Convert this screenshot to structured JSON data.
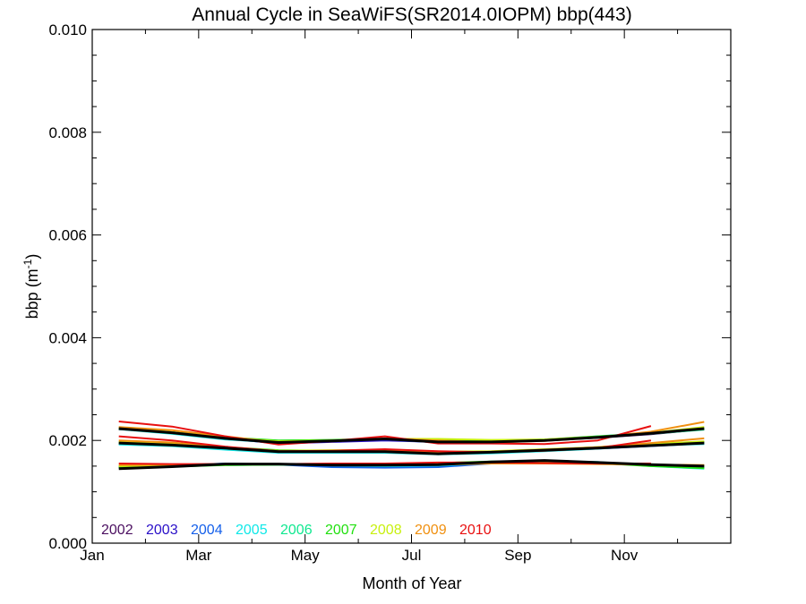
{
  "chart_data": {
    "type": "line",
    "title": "Annual Cycle in SeaWiFS(SR2014.0IOPM) bbp(443)",
    "xlabel": "Month of Year",
    "ylabel_main": "bbp (m",
    "ylabel_sup": "-1",
    "ylabel_close": ")",
    "xlim": [
      0,
      12
    ],
    "ylim": [
      0.0,
      0.01
    ],
    "x_ticks": [
      {
        "value": 0,
        "label": "Jan"
      },
      {
        "value": 2,
        "label": "Mar"
      },
      {
        "value": 4,
        "label": "May"
      },
      {
        "value": 6,
        "label": "Jul"
      },
      {
        "value": 8,
        "label": "Sep"
      },
      {
        "value": 10,
        "label": "Nov"
      }
    ],
    "y_ticks": [
      {
        "value": 0.0,
        "label": "0.000"
      },
      {
        "value": 0.002,
        "label": "0.002"
      },
      {
        "value": 0.004,
        "label": "0.004"
      },
      {
        "value": 0.006,
        "label": "0.006"
      },
      {
        "value": 0.008,
        "label": "0.008"
      },
      {
        "value": 0.01,
        "label": "0.010"
      }
    ],
    "x": [
      0.5,
      1.5,
      2.5,
      3.5,
      4.5,
      5.5,
      6.5,
      7.5,
      8.5,
      9.5,
      10.5,
      11.5
    ],
    "series": [
      {
        "name": "2002",
        "color": "#4b0f60",
        "group": "upper",
        "values": [
          0.00222,
          0.00216,
          0.00205,
          0.00195,
          0.00198,
          0.00202,
          0.00198,
          0.00198,
          0.002,
          0.00205,
          0.00212,
          0.00222
        ]
      },
      {
        "name": "2002",
        "color": "#4b0f60",
        "group": "middle",
        "values": [
          0.00195,
          0.00192,
          0.00185,
          0.00178,
          0.00178,
          0.00178,
          0.00176,
          0.00178,
          0.00182,
          0.00185,
          0.0019,
          0.00196
        ]
      },
      {
        "name": "2002",
        "color": "#4b0f60",
        "group": "lower",
        "values": [
          0.00147,
          0.0015,
          0.00153,
          0.00153,
          0.00151,
          0.00151,
          0.00154,
          0.00157,
          0.00158,
          0.00155,
          0.00152,
          0.00149
        ]
      },
      {
        "name": "2003",
        "color": "#2a10c8",
        "group": "upper",
        "values": [
          0.00223,
          0.00215,
          0.00204,
          0.00194,
          0.00197,
          0.002,
          0.00197,
          0.00197,
          0.00201,
          0.00206,
          0.00213,
          0.00223
        ]
      },
      {
        "name": "2003",
        "color": "#2a10c8",
        "group": "middle",
        "values": [
          0.00194,
          0.00191,
          0.00184,
          0.00178,
          0.00179,
          0.00178,
          0.00175,
          0.00177,
          0.00181,
          0.00185,
          0.00191,
          0.00195
        ]
      },
      {
        "name": "2003",
        "color": "#2a10c8",
        "group": "lower",
        "values": [
          0.00148,
          0.00151,
          0.00154,
          0.00154,
          0.0015,
          0.0015,
          0.00151,
          0.00156,
          0.00158,
          0.00156,
          0.00152,
          0.0015
        ]
      },
      {
        "name": "2004",
        "color": "#1560ea",
        "group": "upper",
        "values": [
          0.00224,
          0.00214,
          0.00203,
          0.00195,
          0.00199,
          0.00202,
          0.00196,
          0.00196,
          0.002,
          0.00207,
          0.00214,
          0.00224
        ]
      },
      {
        "name": "2004",
        "color": "#1560ea",
        "group": "middle",
        "values": [
          0.00193,
          0.0019,
          0.00183,
          0.00177,
          0.00177,
          0.00177,
          0.00174,
          0.00176,
          0.0018,
          0.00184,
          0.00189,
          0.00194
        ]
      },
      {
        "name": "2004",
        "color": "#1560ea",
        "group": "lower",
        "values": [
          0.00149,
          0.00151,
          0.00155,
          0.00153,
          0.00148,
          0.00147,
          0.00148,
          0.00155,
          0.0016,
          0.00157,
          0.00151,
          0.00147
        ]
      },
      {
        "name": "2005",
        "color": "#10e8e8",
        "group": "upper",
        "values": [
          0.00222,
          0.00213,
          0.00202,
          0.00196,
          0.00199,
          0.00203,
          0.00198,
          0.00197,
          0.00201,
          0.00208,
          0.00215,
          0.00222
        ]
      },
      {
        "name": "2005",
        "color": "#10e8e8",
        "group": "middle",
        "values": [
          0.00192,
          0.00189,
          0.00182,
          0.00176,
          0.00176,
          0.00176,
          0.00173,
          0.00175,
          0.00179,
          0.00184,
          0.0019,
          0.00193
        ]
      },
      {
        "name": "2005",
        "color": "#10e8e8",
        "group": "lower",
        "values": [
          0.0015,
          0.00152,
          0.00154,
          0.00154,
          0.00151,
          0.0015,
          0.00151,
          0.00156,
          0.0016,
          0.00158,
          0.0015,
          0.00145
        ]
      },
      {
        "name": "2006",
        "color": "#10e890",
        "group": "upper",
        "values": [
          0.00223,
          0.00214,
          0.00205,
          0.00199,
          0.002,
          0.00203,
          0.00199,
          0.00198,
          0.00201,
          0.00207,
          0.00213,
          0.00221
        ]
      },
      {
        "name": "2006",
        "color": "#10e890",
        "group": "middle",
        "values": [
          0.00195,
          0.00192,
          0.00186,
          0.0018,
          0.00179,
          0.00179,
          0.00176,
          0.00177,
          0.00181,
          0.00186,
          0.00191,
          0.00196
        ]
      },
      {
        "name": "2006",
        "color": "#10e890",
        "group": "lower",
        "values": [
          0.00148,
          0.0015,
          0.00152,
          0.00153,
          0.00152,
          0.00152,
          0.00154,
          0.00157,
          0.00159,
          0.00156,
          0.00151,
          0.00147
        ]
      },
      {
        "name": "2007",
        "color": "#22e010",
        "group": "upper",
        "values": [
          0.00224,
          0.00216,
          0.00206,
          0.002,
          0.00201,
          0.00203,
          0.00201,
          0.002,
          0.00202,
          0.00208,
          0.00214,
          0.00223
        ]
      },
      {
        "name": "2007",
        "color": "#22e010",
        "group": "middle",
        "values": [
          0.00196,
          0.00193,
          0.00187,
          0.00181,
          0.0018,
          0.0018,
          0.00177,
          0.00178,
          0.00182,
          0.00187,
          0.00192,
          0.00197
        ]
      },
      {
        "name": "2007",
        "color": "#22e010",
        "group": "lower",
        "values": [
          0.00147,
          0.00149,
          0.00152,
          0.00153,
          0.00153,
          0.00153,
          0.00156,
          0.00159,
          0.0016,
          0.00156,
          0.0015,
          0.00146
        ]
      },
      {
        "name": "2008",
        "color": "#c8f010",
        "group": "upper",
        "values": [
          0.00225,
          0.00216,
          0.00205,
          0.00198,
          0.002,
          0.00203,
          0.00203,
          0.00201,
          0.00202,
          0.00207,
          0.00215,
          0.00226
        ]
      },
      {
        "name": "2008",
        "color": "#c8f010",
        "group": "middle",
        "values": [
          0.00197,
          0.00194,
          0.00186,
          0.0018,
          0.00181,
          0.00181,
          0.00178,
          0.00179,
          0.00183,
          0.00187,
          0.00193,
          0.00198
        ]
      },
      {
        "name": "2008",
        "color": "#c8f010",
        "group": "lower",
        "values": [
          0.0015,
          0.00151,
          0.00153,
          0.00154,
          0.00153,
          0.00153,
          0.00155,
          0.00158,
          0.0016,
          0.00157,
          0.00153,
          0.0015
        ]
      },
      {
        "name": "2009",
        "color": "#f09010",
        "group": "upper",
        "values": [
          0.00226,
          0.0022,
          0.00208,
          0.00196,
          0.00198,
          0.00204,
          0.002,
          0.00196,
          0.00199,
          0.00206,
          0.00217,
          0.00236
        ]
      },
      {
        "name": "2009",
        "color": "#f09010",
        "group": "middle",
        "values": [
          0.002,
          0.00196,
          0.00187,
          0.00179,
          0.00179,
          0.0018,
          0.00177,
          0.00178,
          0.00182,
          0.00187,
          0.00195,
          0.00204
        ]
      },
      {
        "name": "2009",
        "color": "#f09010",
        "group": "lower",
        "values": [
          0.00152,
          0.00153,
          0.00154,
          0.00154,
          0.00154,
          0.00154,
          0.00153,
          0.00155,
          0.00155,
          0.00154,
          0.00153,
          0.00152
        ]
      },
      {
        "name": "2010",
        "color": "#e81010",
        "group": "upper",
        "values": [
          0.00237,
          0.00227,
          0.00208,
          0.00192,
          0.00199,
          0.00208,
          0.00194,
          0.00194,
          0.00193,
          0.002,
          0.00228,
          null
        ]
      },
      {
        "name": "2010",
        "color": "#e81010",
        "group": "middle",
        "values": [
          0.00208,
          0.002,
          0.00188,
          0.00179,
          0.0018,
          0.00183,
          0.00179,
          0.00177,
          0.0018,
          0.00185,
          0.002,
          null
        ]
      },
      {
        "name": "2010",
        "color": "#e81010",
        "group": "lower",
        "values": [
          0.00155,
          0.00154,
          0.00154,
          0.00154,
          0.00155,
          0.00155,
          0.00157,
          0.00157,
          0.00156,
          0.00155,
          0.00155,
          null
        ]
      },
      {
        "name": "",
        "color": "#000000",
        "group": "upper",
        "values": [
          0.00223,
          0.00215,
          0.00204,
          0.00196,
          0.00199,
          0.00203,
          0.00197,
          0.00197,
          0.002,
          0.00206,
          0.00214,
          0.00223
        ]
      },
      {
        "name": "",
        "color": "#000000",
        "group": "middle",
        "values": [
          0.00195,
          0.00191,
          0.00185,
          0.00178,
          0.00178,
          0.00178,
          0.00174,
          0.00177,
          0.00181,
          0.00185,
          0.0019,
          0.00195
        ]
      },
      {
        "name": "",
        "color": "#000000",
        "group": "lower",
        "values": [
          0.00145,
          0.00149,
          0.00154,
          0.00154,
          0.00152,
          0.00152,
          0.00153,
          0.00158,
          0.00161,
          0.00157,
          0.00153,
          0.0015
        ]
      }
    ],
    "legend": [
      {
        "label": "2002",
        "color": "#4b0f60"
      },
      {
        "label": "2003",
        "color": "#2a10c8"
      },
      {
        "label": "2004",
        "color": "#1560ea"
      },
      {
        "label": "2005",
        "color": "#10e8e8"
      },
      {
        "label": "2006",
        "color": "#10e890"
      },
      {
        "label": "2007",
        "color": "#22e010"
      },
      {
        "label": "2008",
        "color": "#c8f010"
      },
      {
        "label": "2009",
        "color": "#f09010"
      },
      {
        "label": "2010",
        "color": "#e81010"
      }
    ],
    "legend_placement": "bottom-left inside plot",
    "grid": false
  }
}
